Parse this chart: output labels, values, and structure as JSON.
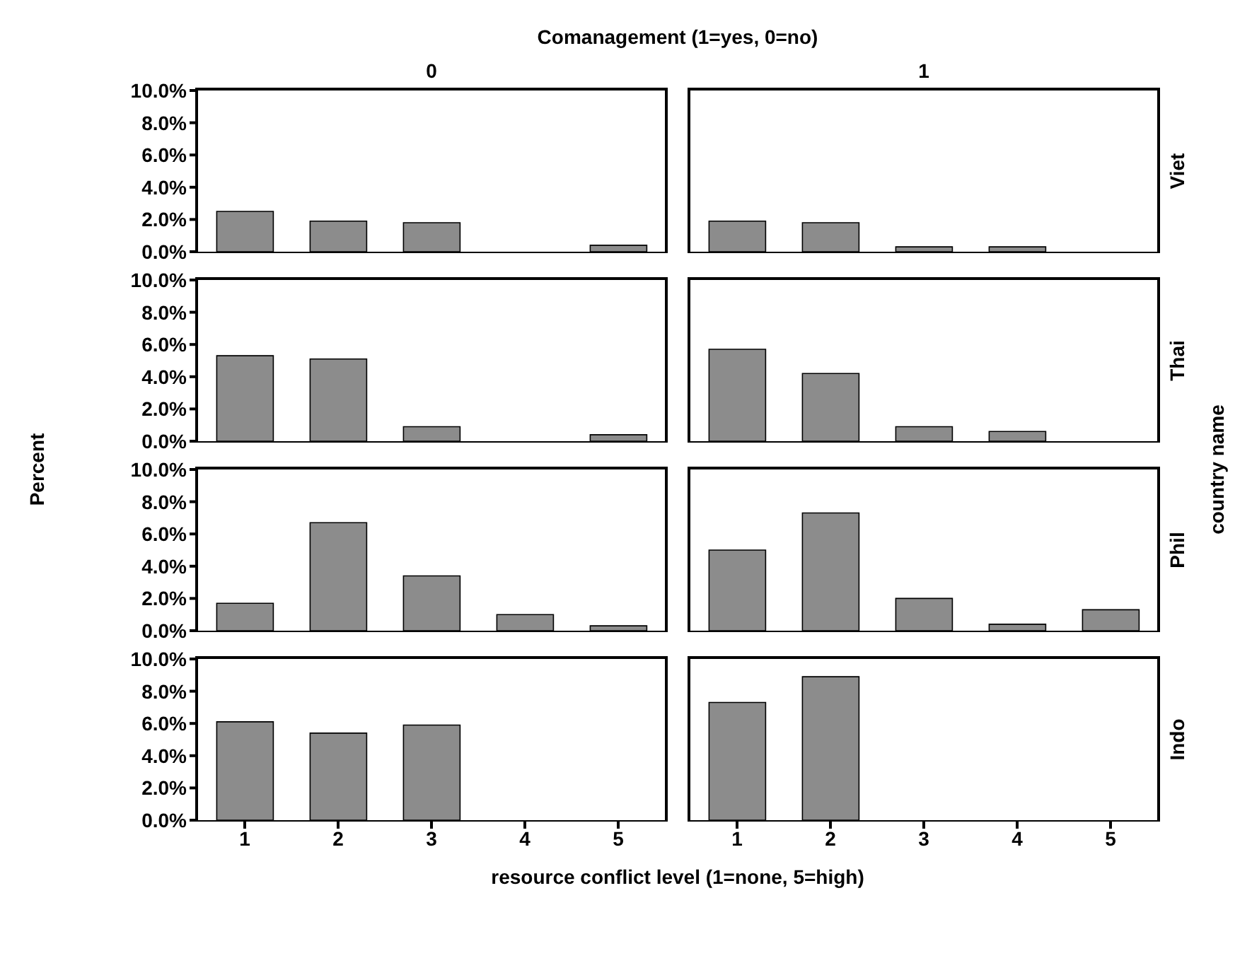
{
  "chart_data": [
    {
      "type": "bar",
      "title": "Comanagement (1=yes, 0=no)",
      "subtitle": "0",
      "categories": [
        "1",
        "2",
        "3",
        "4",
        "5"
      ],
      "values": [
        2.5,
        1.9,
        1.8,
        0,
        0.4
      ],
      "color": "#8c8c8c",
      "ylim": [
        0,
        10
      ],
      "yticks": [
        {
          "value": 0,
          "label": "0.0%"
        },
        {
          "value": 2,
          "label": "2.0%"
        },
        {
          "value": 4,
          "label": "4.0%"
        },
        {
          "value": 6,
          "label": "6.0%"
        },
        {
          "value": 8,
          "label": "8.0%"
        },
        {
          "value": 10,
          "label": "10.0%"
        }
      ],
      "tick_labels": "y"
    },
    {
      "type": "bar",
      "subtitle": "1",
      "y2label": "Viet",
      "categories": [
        "1",
        "2",
        "3",
        "4",
        "5"
      ],
      "values": [
        1.9,
        1.8,
        0.3,
        0.3,
        0
      ],
      "color": "#8c8c8c",
      "ylim": [
        0,
        10
      ],
      "tick_labels": false
    },
    {
      "type": "bar",
      "ylabel": "Percent",
      "categories": [
        "1",
        "2",
        "3",
        "4",
        "5"
      ],
      "values": [
        5.3,
        5.1,
        0.9,
        0,
        0.4
      ],
      "color": "#8c8c8c",
      "ylim": [
        0,
        10
      ],
      "yticks": [
        {
          "value": 0,
          "label": "0.0%"
        },
        {
          "value": 2,
          "label": "2.0%"
        },
        {
          "value": 4,
          "label": "4.0%"
        },
        {
          "value": 6,
          "label": "6.0%"
        },
        {
          "value": 8,
          "label": "8.0%"
        },
        {
          "value": 10,
          "label": "10.0%"
        }
      ],
      "tick_labels": "y"
    },
    {
      "type": "bar",
      "y2label": "Thai",
      "categories": [
        "1",
        "2",
        "3",
        "4",
        "5"
      ],
      "values": [
        5.7,
        4.2,
        0.9,
        0.6,
        0
      ],
      "color": "#8c8c8c",
      "ylim": [
        0,
        10
      ],
      "tick_labels": false
    },
    {
      "type": "bar",
      "categories": [
        "1",
        "2",
        "3",
        "4",
        "5"
      ],
      "values": [
        1.7,
        6.7,
        3.4,
        1.0,
        0.3
      ],
      "color": "#8c8c8c",
      "ylim": [
        0,
        10
      ],
      "yticks": [
        {
          "value": 0,
          "label": "0.0%"
        },
        {
          "value": 2,
          "label": "2.0%"
        },
        {
          "value": 4,
          "label": "4.0%"
        },
        {
          "value": 6,
          "label": "6.0%"
        },
        {
          "value": 8,
          "label": "8.0%"
        },
        {
          "value": 10,
          "label": "10.0%"
        }
      ],
      "tick_labels": "y"
    },
    {
      "type": "bar",
      "y2label": "Phil",
      "annotations": [
        "country name"
      ],
      "categories": [
        "1",
        "2",
        "3",
        "4",
        "5"
      ],
      "values": [
        5.0,
        7.3,
        2.0,
        0.4,
        1.3
      ],
      "color": "#8c8c8c",
      "ylim": [
        0,
        10
      ],
      "tick_labels": false
    },
    {
      "type": "bar",
      "xlabel": "resource conflict level (1=none, 5=high)",
      "categories": [
        "1",
        "2",
        "3",
        "4",
        "5"
      ],
      "values": [
        6.1,
        5.4,
        5.9,
        0,
        0
      ],
      "color": "#8c8c8c",
      "ylim": [
        0,
        10
      ],
      "yticks": [
        {
          "value": 0,
          "label": "0.0%"
        },
        {
          "value": 2,
          "label": "2.0%"
        },
        {
          "value": 4,
          "label": "4.0%"
        },
        {
          "value": 6,
          "label": "6.0%"
        },
        {
          "value": 8,
          "label": "8.0%"
        },
        {
          "value": 10,
          "label": "10.0%"
        }
      ]
    },
    {
      "type": "bar",
      "y2label": "Indo",
      "categories": [
        "1",
        "2",
        "3",
        "4",
        "5"
      ],
      "values": [
        7.3,
        8.9,
        0,
        0,
        0
      ],
      "color": "#8c8c8c",
      "ylim": [
        0,
        10
      ],
      "tick_labels": "x"
    }
  ]
}
